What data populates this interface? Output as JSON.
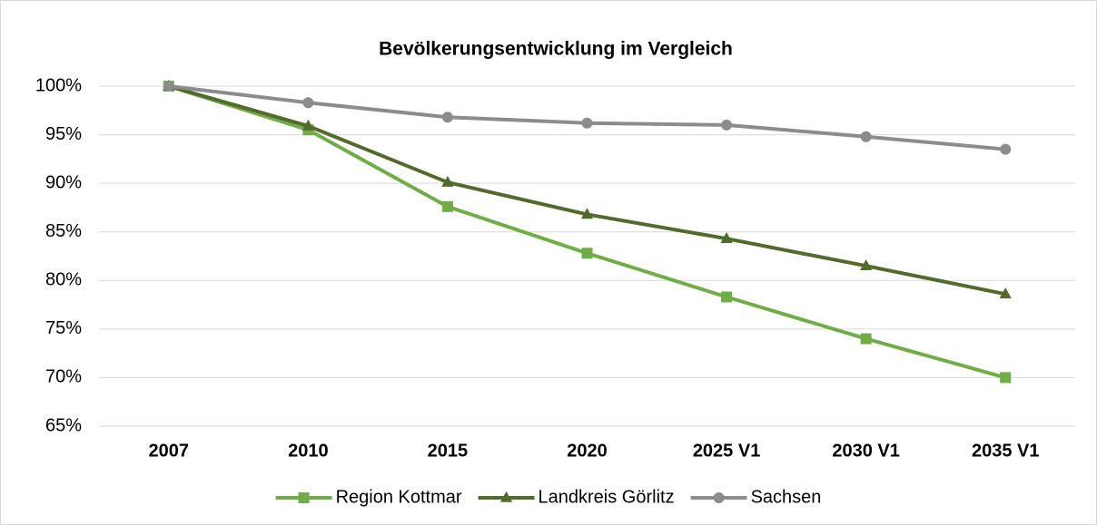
{
  "chart_data": {
    "type": "line",
    "title": "Bevölkerungsentwicklung im Vergleich",
    "categories": [
      "2007",
      "2010",
      "2015",
      "2020",
      "2025 V1",
      "2030 V1",
      "2035 V1"
    ],
    "series": [
      {
        "name": "Region Kottmar",
        "color": "#70ad47",
        "marker": "square",
        "values": [
          100,
          95.5,
          87.6,
          82.8,
          78.3,
          74,
          70
        ]
      },
      {
        "name": "Landkreis Görlitz",
        "color": "#526b2d",
        "marker": "triangle",
        "values": [
          100,
          95.9,
          90.1,
          86.8,
          84.3,
          81.5,
          78.6
        ]
      },
      {
        "name": "Sachsen",
        "color": "#8c8c8c",
        "marker": "circle",
        "values": [
          100,
          98.3,
          96.8,
          96.2,
          96,
          94.8,
          93.5
        ]
      }
    ],
    "ylim": [
      65,
      100
    ],
    "yticks": [
      {
        "value": 65,
        "label": "65%"
      },
      {
        "value": 70,
        "label": "70%"
      },
      {
        "value": 75,
        "label": "75%"
      },
      {
        "value": 80,
        "label": "80%"
      },
      {
        "value": 85,
        "label": "85%"
      },
      {
        "value": 90,
        "label": "90%"
      },
      {
        "value": 95,
        "label": "95%"
      },
      {
        "value": 100,
        "label": "100%"
      }
    ],
    "grid": true,
    "legend": "bottom"
  }
}
